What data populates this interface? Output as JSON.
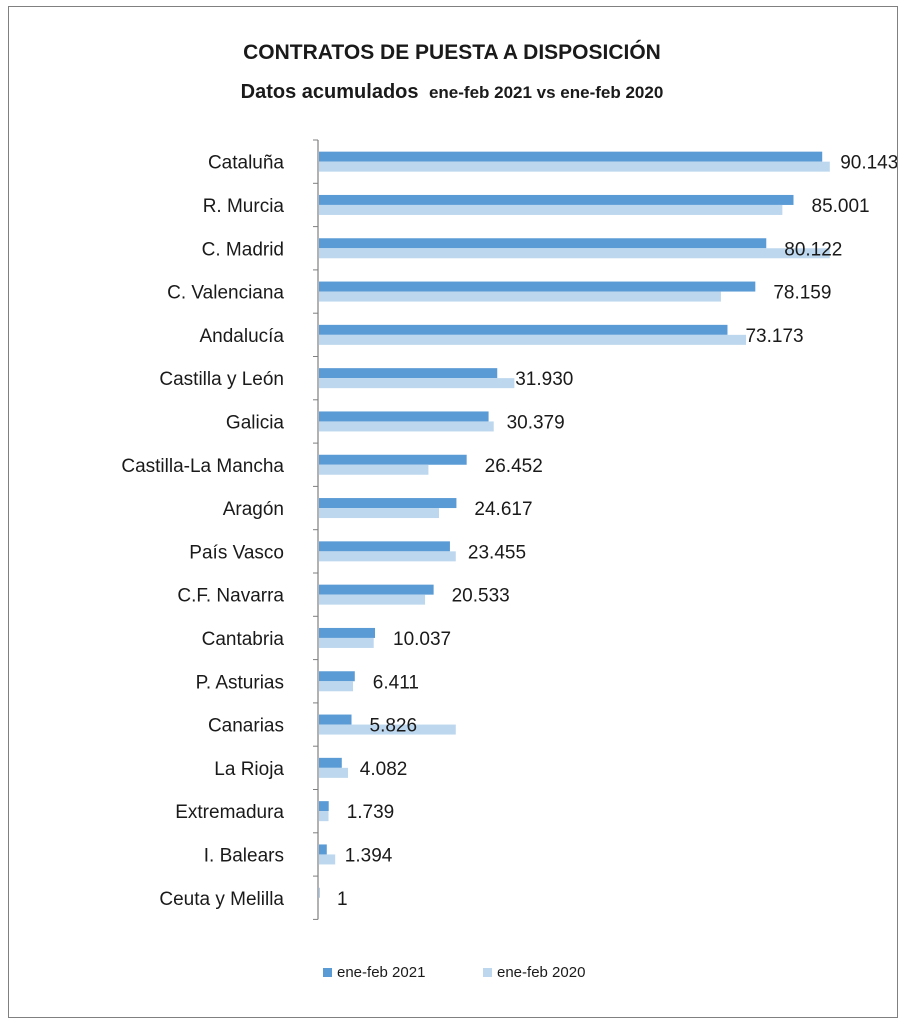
{
  "chart_data": {
    "type": "bar",
    "orientation": "horizontal",
    "title": "CONTRATOS DE PUESTA A DISPOSICIÓN",
    "subtitle_bold": "Datos acumulados",
    "subtitle_rest": "ene-feb 2021 vs ene-feb 2020",
    "xlabel": "",
    "ylabel": "",
    "xlim": [
      0,
      91000
    ],
    "grid": false,
    "legend_position": "bottom",
    "categories": [
      "Cataluña",
      "R. Murcia",
      "C. Madrid",
      "C. Valenciana",
      "Andalucía",
      "Castilla y León",
      "Galicia",
      "Castilla-La Mancha",
      "Aragón",
      "País Vasco",
      "C.F. Navarra",
      "Cantabria",
      "P. Asturias",
      "Canarias",
      "La Rioja",
      "Extremadura",
      "I. Balears",
      "Ceuta y Melilla"
    ],
    "data_labels": [
      "90.143",
      "85.001",
      "80.122",
      "78.159",
      "73.173",
      "31.930",
      "30.379",
      "26.452",
      "24.617",
      "23.455",
      "20.533",
      "10.037",
      "6.411",
      "5.826",
      "4.082",
      "1.739",
      "1.394",
      "1"
    ],
    "series": [
      {
        "name": "ene-feb 2021",
        "color": "#5b9bd5",
        "values": [
          90143,
          85001,
          80122,
          78159,
          73173,
          31930,
          30379,
          26452,
          24617,
          23455,
          20533,
          10037,
          6411,
          5826,
          4082,
          1739,
          1394,
          1
        ]
      },
      {
        "name": "ene-feb 2020",
        "color": "#bdd7ee",
        "values": [
          91500,
          83000,
          91500,
          72000,
          76500,
          35000,
          31300,
          19600,
          21500,
          24500,
          19000,
          9800,
          6100,
          24500,
          5200,
          1700,
          2900,
          0
        ]
      }
    ]
  }
}
